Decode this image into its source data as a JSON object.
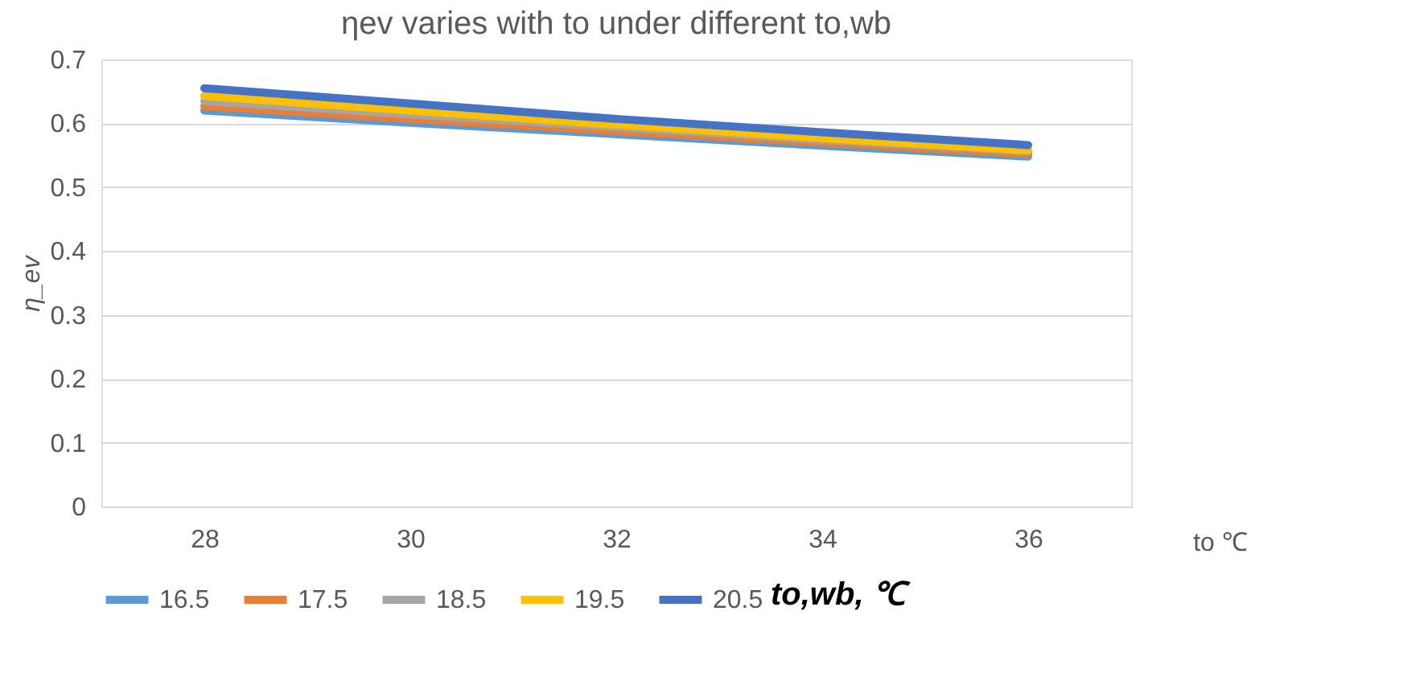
{
  "chart_data": {
    "type": "line",
    "title": "ηev varies with to under different to,wb",
    "xlabel": "to  ℃",
    "ylabel": "η_ev",
    "legend_title": "to,wb, ℃",
    "categories": [
      "28",
      "30",
      "32",
      "34",
      "36"
    ],
    "series": [
      {
        "name": "16.5",
        "color": "#5b9bd5",
        "values": [
          0.62,
          0.601,
          0.583,
          0.565,
          0.548
        ]
      },
      {
        "name": "17.5",
        "color": "#ed7d31",
        "values": [
          0.627,
          0.607,
          0.588,
          0.57,
          0.552
        ]
      },
      {
        "name": "18.5",
        "color": "#a5a5a5",
        "values": [
          0.635,
          0.614,
          0.594,
          0.574,
          0.556
        ]
      },
      {
        "name": "19.5",
        "color": "#ffc000",
        "values": [
          0.643,
          0.62,
          0.598,
          0.577,
          0.558
        ]
      },
      {
        "name": "20.5",
        "color": "#4472c4",
        "values": [
          0.655,
          0.631,
          0.607,
          0.586,
          0.566
        ]
      }
    ],
    "ylim": [
      0,
      0.7
    ],
    "yticks": [
      0,
      0.1,
      0.2,
      0.3,
      0.4,
      0.5,
      0.6,
      0.7
    ],
    "grid": "y",
    "legend": "bottom",
    "marker": "none",
    "line_style": "solid"
  }
}
